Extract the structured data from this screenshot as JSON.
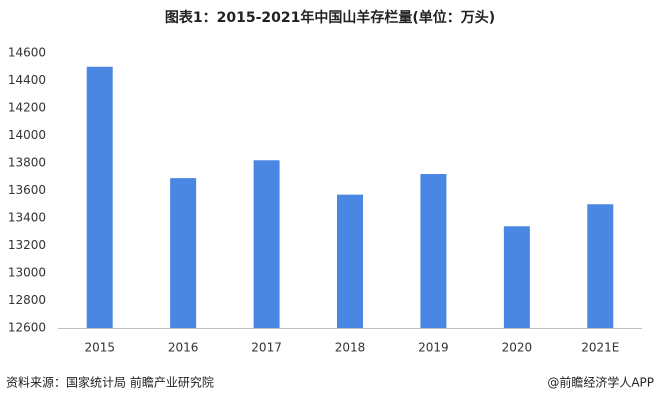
{
  "chart_data": {
    "type": "bar",
    "title": "图表1：2015-2021年中国山羊存栏量(单位：万头)",
    "categories": [
      "2015",
      "2016",
      "2017",
      "2018",
      "2019",
      "2020",
      "2021E"
    ],
    "values": [
      14500,
      13690,
      13820,
      13570,
      13720,
      13340,
      13500
    ],
    "color": "#4a87e3",
    "ylim": [
      12600,
      14600
    ],
    "yticks": [
      12600,
      12800,
      13000,
      13200,
      13400,
      13600,
      13800,
      14000,
      14200,
      14400,
      14600
    ],
    "grid": false,
    "source": "资料来源：国家统计局 前瞻产业研究院",
    "credit": "@前瞻经济学人APP"
  }
}
